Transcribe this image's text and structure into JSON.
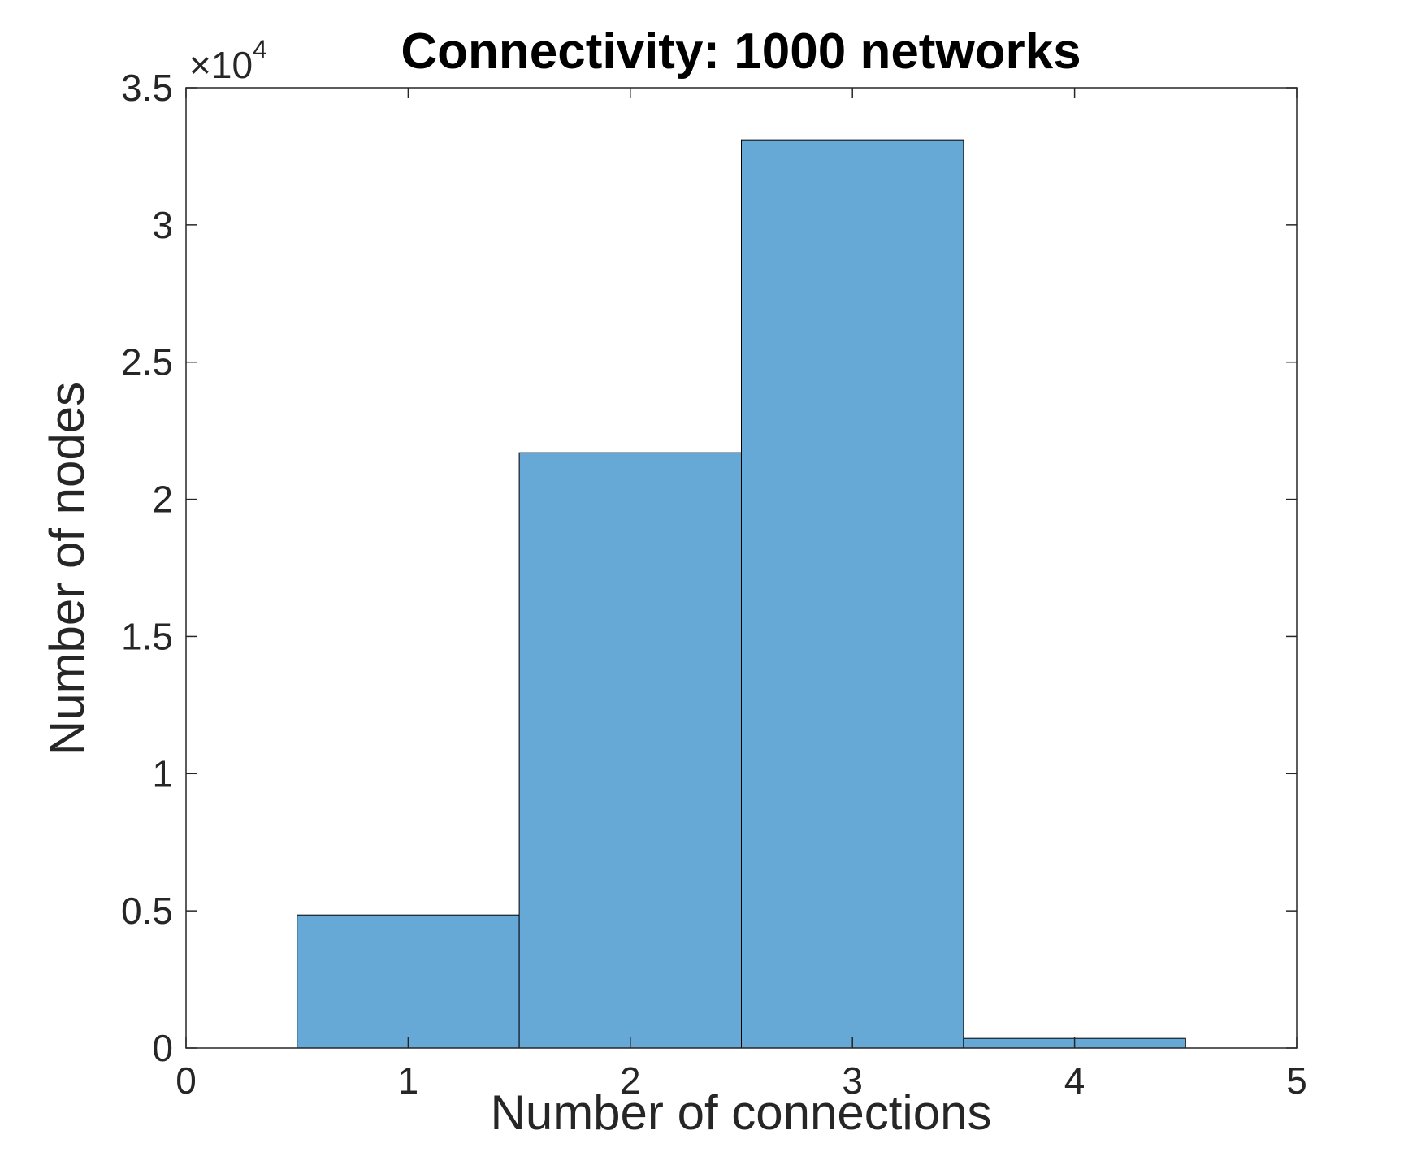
{
  "chart_data": {
    "type": "bar",
    "title": "Connectivity: 1000 networks",
    "xlabel": "Number of connections",
    "ylabel": "Number of nodes",
    "y_exponent_multiplier": "×10",
    "y_exponent_power": "4",
    "xlim": [
      0,
      5
    ],
    "ylim": [
      0,
      35000
    ],
    "x_ticks": [
      "0",
      "1",
      "2",
      "3",
      "4",
      "5"
    ],
    "y_ticks": [
      "0",
      "0.5",
      "1",
      "1.5",
      "2",
      "2.5",
      "3",
      "3.5"
    ],
    "bin_centers": [
      1,
      2,
      3,
      4
    ],
    "bin_width": 1,
    "values": [
      4850,
      21700,
      33100,
      350
    ],
    "bar_color": "#67a9d6",
    "bar_edge_color": "#000000",
    "axis_color": "#262626",
    "grid": false,
    "legend": "none"
  }
}
